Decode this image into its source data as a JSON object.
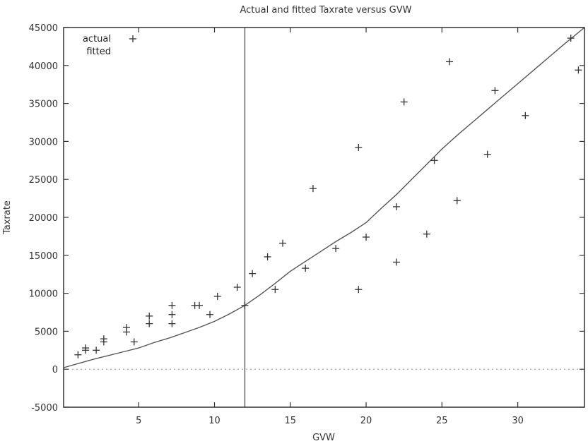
{
  "chart_data": {
    "type": "scatter",
    "title": "Actual and fitted Taxrate versus GVW",
    "xlabel": "GVW",
    "ylabel": "Taxrate",
    "xlim": [
      0.05,
      34.4
    ],
    "ylim": [
      -5000,
      45000
    ],
    "grid": false,
    "legend_position": "top-left",
    "legend": [
      {
        "label": "actual",
        "marker": "+"
      },
      {
        "label": "fitted",
        "marker": "line"
      }
    ],
    "x_ticks": [
      5,
      10,
      15,
      20,
      25,
      30
    ],
    "x_tick_labels": [
      "5",
      "10",
      "15",
      "20",
      "25",
      "30"
    ],
    "y_ticks": [
      -5000,
      0,
      5000,
      10000,
      15000,
      20000,
      25000,
      30000,
      35000,
      40000,
      45000
    ],
    "y_tick_labels": [
      "-5000",
      "0",
      "5000",
      "10000",
      "15000",
      "20000",
      "25000",
      "30000",
      "35000",
      "40000",
      "45000"
    ],
    "annotations": [
      {
        "type": "vertical_line",
        "x": 12
      },
      {
        "type": "horizontal_dotted_line",
        "y": 0
      }
    ],
    "series": [
      {
        "name": "actual",
        "style": "points",
        "marker": "+",
        "points": [
          [
            1.0,
            1900
          ],
          [
            1.5,
            2500
          ],
          [
            1.5,
            2800
          ],
          [
            2.2,
            2500
          ],
          [
            2.7,
            3600
          ],
          [
            2.7,
            4000
          ],
          [
            4.2,
            4900
          ],
          [
            4.2,
            5500
          ],
          [
            4.7,
            3600
          ],
          [
            5.7,
            6000
          ],
          [
            5.7,
            7000
          ],
          [
            7.2,
            6000
          ],
          [
            7.2,
            7200
          ],
          [
            7.2,
            8400
          ],
          [
            8.7,
            8400
          ],
          [
            9.0,
            8400
          ],
          [
            9.7,
            7200
          ],
          [
            10.2,
            9600
          ],
          [
            11.5,
            10800
          ],
          [
            12.0,
            8400
          ],
          [
            12.5,
            12600
          ],
          [
            13.5,
            14800
          ],
          [
            14.0,
            10500
          ],
          [
            14.5,
            16600
          ],
          [
            16.0,
            13300
          ],
          [
            16.5,
            23800
          ],
          [
            18.0,
            15900
          ],
          [
            19.5,
            29200
          ],
          [
            19.5,
            10500
          ],
          [
            20.0,
            17400
          ],
          [
            22.0,
            21400
          ],
          [
            22.0,
            14100
          ],
          [
            22.5,
            35200
          ],
          [
            24.0,
            17800
          ],
          [
            24.5,
            27500
          ],
          [
            25.5,
            40500
          ],
          [
            26.0,
            22200
          ],
          [
            28.0,
            28300
          ],
          [
            28.5,
            36700
          ],
          [
            30.5,
            33400
          ],
          [
            33.5,
            43600
          ],
          [
            34.0,
            39400
          ]
        ]
      },
      {
        "name": "fitted",
        "style": "line",
        "points": [
          [
            0.05,
            200
          ],
          [
            2,
            1300
          ],
          [
            4,
            2300
          ],
          [
            5,
            2800
          ],
          [
            6,
            3500
          ],
          [
            7,
            4100
          ],
          [
            8,
            4800
          ],
          [
            9,
            5500
          ],
          [
            10,
            6300
          ],
          [
            11,
            7300
          ],
          [
            12,
            8400
          ],
          [
            13,
            9800
          ],
          [
            14,
            11300
          ],
          [
            15,
            12900
          ],
          [
            16,
            14200
          ],
          [
            17,
            15500
          ],
          [
            18,
            16800
          ],
          [
            19,
            18000
          ],
          [
            20,
            19300
          ],
          [
            21,
            21200
          ],
          [
            22,
            23000
          ],
          [
            23,
            25000
          ],
          [
            24,
            27000
          ],
          [
            25,
            29000
          ],
          [
            26,
            30800
          ],
          [
            27,
            32500
          ],
          [
            28,
            34200
          ],
          [
            29,
            35900
          ],
          [
            30,
            37600
          ],
          [
            31,
            39300
          ],
          [
            32,
            41000
          ],
          [
            33,
            42700
          ],
          [
            34.4,
            45000
          ]
        ]
      }
    ]
  },
  "colors": {
    "background": "#ffffff",
    "axis": "#333333",
    "points": "#333333",
    "fitted_line": "#555555",
    "zero_line": "#999999",
    "vertical_line": "#666666"
  }
}
